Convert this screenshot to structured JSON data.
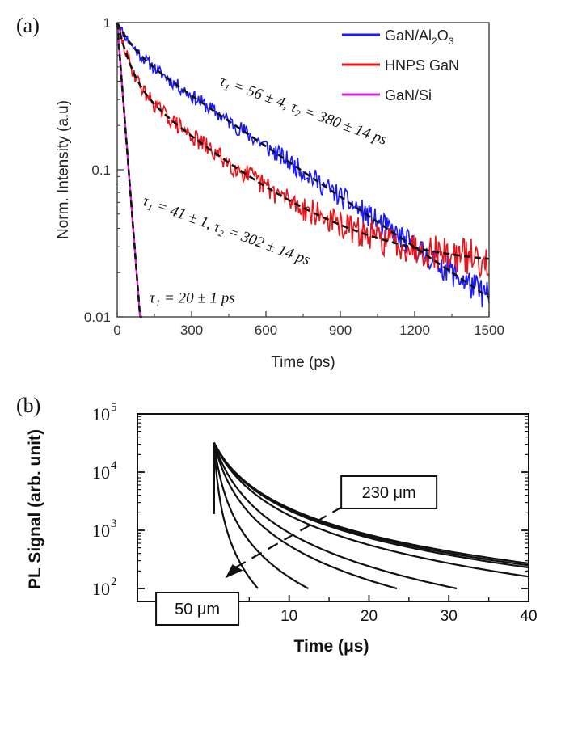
{
  "chart_data": [
    {
      "panel_label": "(a)",
      "type": "line",
      "xlabel": "Time (ps)",
      "ylabel": "Norm. Intensity (a.u)",
      "xlim": [
        0,
        1500
      ],
      "ylim": [
        0.01,
        1
      ],
      "yscale": "log",
      "xticks": [
        0,
        300,
        600,
        900,
        1200,
        1500
      ],
      "yticks": [
        {
          "v": 0.01,
          "label": "0.01"
        },
        {
          "v": 0.1,
          "label": "0.1"
        },
        {
          "v": 1,
          "label": "1"
        }
      ],
      "legend_position": "top-right",
      "series": [
        {
          "name": "GaN/Al2O3",
          "legend_main": "GaN/Al",
          "legend_sub1": "2",
          "legend_mid": "O",
          "legend_sub2": "3",
          "color": "#1a1aff",
          "model": {
            "A1": 0.3,
            "tau1": 56,
            "A2": 0.7,
            "tau2": 380
          },
          "noise": 0.16,
          "seed": 11,
          "t_end": 1500
        },
        {
          "name": "HNPS GaN",
          "color": "#e8141a",
          "model": {
            "A1": 0.58,
            "tau1": 41,
            "A2": 0.42,
            "tau2": 302
          },
          "noise": 0.2,
          "seed": 29,
          "t_end": 1500,
          "floor": 0.022
        },
        {
          "name": "GaN/Si",
          "color": "#e020e0",
          "model": {
            "A1": 1.0,
            "tau1": 20,
            "A2": 0,
            "tau2": 1
          },
          "noise": 0.0,
          "seed": 3,
          "t_end": 100
        }
      ],
      "fits_color": "#111111",
      "annotations": [
        {
          "text": "τ₁ = 56 ± 4, τ₂ = 380 ± 14 ps",
          "x": 410,
          "y": 0.38,
          "rotate": 20
        },
        {
          "text": "τ₁ = 41 ± 1, τ₂ = 302 ± 14 ps",
          "x": 100,
          "y": 0.058,
          "rotate": 20
        },
        {
          "text": "τ₁ = 20 ± 1 ps",
          "x": 130,
          "y": 0.0125,
          "rotate": 0
        }
      ]
    },
    {
      "panel_label": "(b)",
      "type": "line",
      "xlabel": "Time (μs)",
      "ylabel": "PL Signal (arb. unit)",
      "xlim": [
        -9,
        40
      ],
      "ylim": [
        60,
        100000
      ],
      "yscale": "log",
      "xticks": [
        0,
        10,
        20,
        30,
        40
      ],
      "yticks": [
        {
          "v": 100,
          "exp": "2"
        },
        {
          "v": 1000,
          "exp": "3"
        },
        {
          "v": 10000,
          "exp": "4"
        },
        {
          "v": 100000,
          "exp": "5"
        }
      ],
      "series": [
        {
          "t_end": 6.1,
          "y_end": 100
        },
        {
          "t_end": 12.4,
          "y_end": 100
        },
        {
          "t_end": 23.5,
          "y_end": 100
        },
        {
          "t_end": 31.0,
          "y_end": 100
        },
        {
          "t_end": 40,
          "y_end": 160
        },
        {
          "t_end": 40,
          "y_end": 230
        },
        {
          "t_end": 40,
          "y_end": 250
        },
        {
          "t_end": 40,
          "y_end": 270
        }
      ],
      "peak": {
        "t": 0.6,
        "y": 32000
      },
      "annotations": [
        {
          "text": "230 μm",
          "x": 22.5,
          "y": 4500
        },
        {
          "text": "50 μm",
          "x": -1.5,
          "y": 45
        }
      ]
    }
  ]
}
